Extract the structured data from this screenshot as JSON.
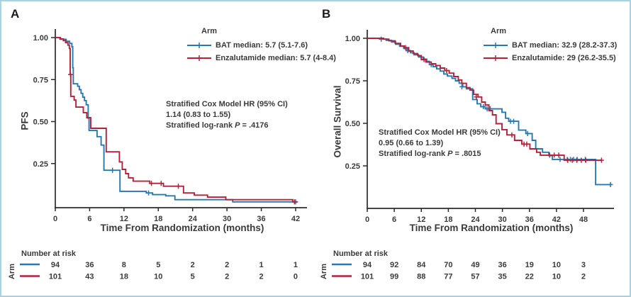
{
  "figure": {
    "background": "#ffffff",
    "border_color": "#abd3df",
    "text_color": "#3a3a3a",
    "panels": [
      {
        "panel_label": "A",
        "y_axis_label": "PFS",
        "x_axis_label": "Time From Randomization (months)",
        "legend": {
          "title": "Arm",
          "entries": [
            "BAT median: 5.7 (5.1-7.6)",
            "Enzalutamide median: 5.7 (4-8.4)"
          ]
        },
        "stats": {
          "line1": "Stratified Cox Model HR (95% CI)",
          "line2": "1.14 (0.83 to 1.55)",
          "logrank_prefix": "Stratified log-rank",
          "p_symbol": "P",
          "p_value": "= .4176"
        },
        "risk_table": {
          "title": "Number at risk",
          "axis_label": "Arm",
          "rows": [
            {
              "arm": "BAT",
              "color": "#2878b0",
              "counts": [
                94,
                36,
                8,
                5,
                2,
                2,
                1,
                1
              ]
            },
            {
              "arm": "Enzalutamide",
              "color": "#b4223a",
              "counts": [
                101,
                43,
                18,
                10,
                5,
                2,
                2,
                0
              ]
            }
          ]
        }
      },
      {
        "panel_label": "B",
        "y_axis_label": "Overall Survival",
        "x_axis_label": "Time From Randomization (months)",
        "legend": {
          "title": "Arm",
          "entries": [
            "BAT median: 32.9 (28.2-37.3)",
            "Enzalutamide: 29 (26.2-35.5)"
          ]
        },
        "stats": {
          "line1": "Stratified Cox Model HR (95% CI)",
          "line2": "0.95 (0.66 to 1.39)",
          "logrank_prefix": "Stratified log-rank",
          "p_symbol": "P",
          "p_value": "= .8015"
        },
        "risk_table": {
          "title": "Number at risk",
          "axis_label": "Arm",
          "rows": [
            {
              "arm": "BAT",
              "color": "#2878b0",
              "counts": [
                94,
                92,
                84,
                70,
                49,
                36,
                19,
                10,
                3
              ]
            },
            {
              "arm": "Enzalutamide",
              "color": "#b4223a",
              "counts": [
                101,
                99,
                88,
                77,
                57,
                35,
                22,
                10,
                2
              ]
            }
          ]
        }
      }
    ]
  },
  "chart_data": [
    {
      "type": "line",
      "subtype": "kaplan-meier-step",
      "title": "PFS by arm",
      "xlabel": "Time From Randomization (months)",
      "ylabel": "PFS",
      "xlim": [
        0,
        43.8
      ],
      "ylim": [
        0,
        1.0
      ],
      "x_ticks": [
        0,
        6,
        12,
        18,
        24,
        30,
        36,
        42
      ],
      "y_ticks": [
        1.0,
        0.75,
        0.5,
        0.25
      ],
      "y_tick_labels": [
        "1.00",
        "0.75",
        "0.50",
        "0.25"
      ],
      "grid": false,
      "legend_position": "top-right",
      "series": [
        {
          "name": "BAT",
          "color": "#2878b0",
          "steps": [
            [
              0,
              1.0
            ],
            [
              0.9,
              0.99
            ],
            [
              1.9,
              0.978
            ],
            [
              2.5,
              0.965
            ],
            [
              2.9,
              0.945
            ],
            [
              3.05,
              0.82
            ],
            [
              3.15,
              0.725
            ],
            [
              3.9,
              0.71
            ],
            [
              4.2,
              0.69
            ],
            [
              4.5,
              0.668
            ],
            [
              4.8,
              0.645
            ],
            [
              5.1,
              0.625
            ],
            [
              5.4,
              0.6
            ],
            [
              5.75,
              0.52
            ],
            [
              5.9,
              0.447
            ],
            [
              7.3,
              0.41
            ],
            [
              8.0,
              0.36
            ],
            [
              8.5,
              0.21
            ],
            [
              11.3,
              0.085
            ],
            [
              15.9,
              0.075
            ],
            [
              17.0,
              0.065
            ],
            [
              19.3,
              0.058
            ],
            [
              20.9,
              0.035
            ],
            [
              31.0,
              0.022
            ],
            [
              42.3,
              0.022
            ]
          ],
          "censors": [
            [
              10.0,
              0.21
            ],
            [
              16.3,
              0.075
            ],
            [
              42.0,
              0.022
            ]
          ]
        },
        {
          "name": "Enzalutamide",
          "color": "#b4223a",
          "steps": [
            [
              0,
              1.0
            ],
            [
              0.8,
              0.992
            ],
            [
              1.4,
              0.982
            ],
            [
              1.8,
              0.97
            ],
            [
              2.2,
              0.955
            ],
            [
              2.45,
              0.935
            ],
            [
              2.6,
              0.78
            ],
            [
              2.7,
              0.65
            ],
            [
              3.3,
              0.628
            ],
            [
              3.6,
              0.586
            ],
            [
              4.9,
              0.553
            ],
            [
              5.5,
              0.523
            ],
            [
              6.2,
              0.46
            ],
            [
              8.9,
              0.32
            ],
            [
              11.2,
              0.26
            ],
            [
              11.7,
              0.215
            ],
            [
              12.3,
              0.19
            ],
            [
              12.8,
              0.165
            ],
            [
              13.6,
              0.145
            ],
            [
              16.5,
              0.132
            ],
            [
              18.9,
              0.115
            ],
            [
              22.4,
              0.075
            ],
            [
              24.3,
              0.062
            ],
            [
              26.6,
              0.05
            ],
            [
              29.8,
              0.035
            ],
            [
              41.5,
              0.022
            ],
            [
              42.3,
              0.022
            ]
          ],
          "censors": [
            [
              2.65,
              0.78
            ],
            [
              16.8,
              0.132
            ],
            [
              18.5,
              0.132
            ],
            [
              21.5,
              0.115
            ],
            [
              41.8,
              0.022
            ]
          ]
        }
      ]
    },
    {
      "type": "line",
      "subtype": "kaplan-meier-step",
      "title": "Overall Survival by arm",
      "xlabel": "Time From Randomization (months)",
      "ylabel": "Overall Survival",
      "xlim": [
        0,
        54.8
      ],
      "ylim": [
        0,
        1.0
      ],
      "x_ticks": [
        0,
        6,
        12,
        18,
        24,
        30,
        36,
        42,
        48
      ],
      "y_ticks": [
        1.0,
        0.75,
        0.5,
        0.25
      ],
      "y_tick_labels": [
        "1.00",
        "0.75",
        "0.50",
        "0.25"
      ],
      "grid": false,
      "legend_position": "top-right",
      "series": [
        {
          "name": "BAT",
          "color": "#2878b0",
          "steps": [
            [
              0,
              1.0
            ],
            [
              2.7,
              0.995
            ],
            [
              4.2,
              0.988
            ],
            [
              5.4,
              0.978
            ],
            [
              6.3,
              0.965
            ],
            [
              7.2,
              0.953
            ],
            [
              8.1,
              0.94
            ],
            [
              8.8,
              0.927
            ],
            [
              9.6,
              0.915
            ],
            [
              10.4,
              0.903
            ],
            [
              11.4,
              0.89
            ],
            [
              12.4,
              0.877
            ],
            [
              13.2,
              0.864
            ],
            [
              13.8,
              0.845
            ],
            [
              14.6,
              0.833
            ],
            [
              15.4,
              0.82
            ],
            [
              16.2,
              0.807
            ],
            [
              17.0,
              0.79
            ],
            [
              17.8,
              0.778
            ],
            [
              18.8,
              0.764
            ],
            [
              19.6,
              0.75
            ],
            [
              20.4,
              0.736
            ],
            [
              21.2,
              0.715
            ],
            [
              22.0,
              0.703
            ],
            [
              23.4,
              0.64
            ],
            [
              24.4,
              0.615
            ],
            [
              25.2,
              0.598
            ],
            [
              26.2,
              0.585
            ],
            [
              29.9,
              0.565
            ],
            [
              30.7,
              0.53
            ],
            [
              31.4,
              0.512
            ],
            [
              33.6,
              0.46
            ],
            [
              35.2,
              0.44
            ],
            [
              36.6,
              0.4
            ],
            [
              37.4,
              0.35
            ],
            [
              38.9,
              0.33
            ],
            [
              40.3,
              0.31
            ],
            [
              41.1,
              0.288
            ],
            [
              50.7,
              0.14
            ],
            [
              54.0,
              0.14
            ]
          ],
          "censors": [
            [
              3.1,
              0.995
            ],
            [
              9.0,
              0.927
            ],
            [
              14.2,
              0.845
            ],
            [
              21.0,
              0.715
            ],
            [
              25.8,
              0.598
            ],
            [
              26.6,
              0.585
            ],
            [
              27.3,
              0.585
            ],
            [
              31.8,
              0.512
            ],
            [
              32.5,
              0.512
            ],
            [
              35.6,
              0.44
            ],
            [
              42.8,
              0.288
            ],
            [
              44.4,
              0.288
            ],
            [
              45.1,
              0.288
            ],
            [
              45.8,
              0.288
            ],
            [
              46.6,
              0.288
            ],
            [
              48.4,
              0.288
            ],
            [
              54.0,
              0.14
            ]
          ]
        },
        {
          "name": "Enzalutamide",
          "color": "#b4223a",
          "steps": [
            [
              0,
              1.0
            ],
            [
              3.6,
              0.995
            ],
            [
              4.8,
              0.985
            ],
            [
              6.2,
              0.97
            ],
            [
              7.4,
              0.955
            ],
            [
              8.2,
              0.945
            ],
            [
              9.2,
              0.925
            ],
            [
              10.2,
              0.91
            ],
            [
              11.2,
              0.898
            ],
            [
              12.0,
              0.875
            ],
            [
              13.0,
              0.86
            ],
            [
              14.2,
              0.85
            ],
            [
              15.2,
              0.84
            ],
            [
              16.2,
              0.825
            ],
            [
              17.2,
              0.81
            ],
            [
              18.2,
              0.795
            ],
            [
              19.2,
              0.775
            ],
            [
              20.2,
              0.755
            ],
            [
              21.0,
              0.735
            ],
            [
              22.0,
              0.71
            ],
            [
              22.8,
              0.695
            ],
            [
              23.6,
              0.67
            ],
            [
              24.6,
              0.655
            ],
            [
              25.4,
              0.625
            ],
            [
              26.2,
              0.608
            ],
            [
              27.0,
              0.575
            ],
            [
              27.8,
              0.55
            ],
            [
              28.6,
              0.498
            ],
            [
              29.9,
              0.463
            ],
            [
              31.0,
              0.432
            ],
            [
              32.7,
              0.4
            ],
            [
              34.3,
              0.378
            ],
            [
              36.1,
              0.35
            ],
            [
              37.6,
              0.33
            ],
            [
              38.4,
              0.313
            ],
            [
              43.7,
              0.283
            ],
            [
              52.0,
              0.283
            ]
          ],
          "censors": [
            [
              8.5,
              0.945
            ],
            [
              12.6,
              0.875
            ],
            [
              17.6,
              0.81
            ],
            [
              24.2,
              0.655
            ],
            [
              32.1,
              0.432
            ],
            [
              34.8,
              0.378
            ],
            [
              35.4,
              0.378
            ],
            [
              40.5,
              0.313
            ],
            [
              41.5,
              0.313
            ],
            [
              42.5,
              0.313
            ],
            [
              44.5,
              0.283
            ],
            [
              45.5,
              0.283
            ],
            [
              46.5,
              0.283
            ],
            [
              47.5,
              0.283
            ],
            [
              48.5,
              0.283
            ],
            [
              52.0,
              0.283
            ]
          ]
        }
      ]
    }
  ]
}
